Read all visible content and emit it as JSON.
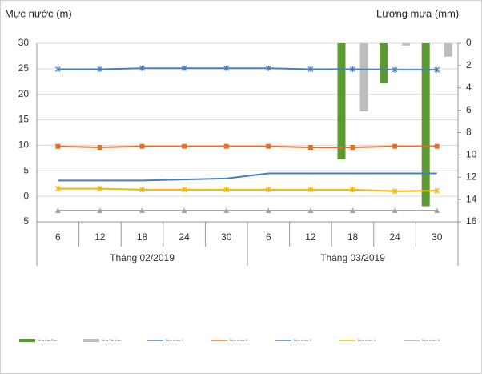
{
  "chart_data": {
    "type": "combo",
    "y_label": "Mực nước (m)",
    "y2_label": "Lượng mưa (mm)",
    "categories": [
      "6",
      "12",
      "18",
      "24",
      "30",
      "6",
      "12",
      "18",
      "24",
      "30"
    ],
    "category_groups": [
      "Tháng 02/2019",
      "Tháng 03/2019"
    ],
    "ylim": [
      -5,
      30
    ],
    "yticks": [
      {
        "value": -5,
        "label": "5"
      },
      0,
      5,
      10,
      15,
      20,
      25,
      30
    ],
    "y2lim": [
      0,
      16
    ],
    "y2ticks": [
      0,
      2,
      4,
      6,
      8,
      10,
      12,
      14,
      16
    ],
    "y2_inverted": true,
    "grid": true,
    "series": [
      {
        "name": "Mưa Lạc Sơn",
        "kind": "bar",
        "axis": "y2",
        "color": "#5b9a32",
        "values": [
          null,
          null,
          null,
          null,
          null,
          null,
          null,
          10.4,
          3.6,
          14.6
        ]
      },
      {
        "name": "Mưa Tân Lạc",
        "kind": "bar",
        "axis": "y2",
        "color": "#bdbdbd",
        "values": [
          null,
          null,
          null,
          null,
          null,
          null,
          null,
          6.1,
          0.2,
          1.2
        ]
      },
      {
        "name": "Mực nước 1",
        "kind": "line",
        "marker": "x",
        "color": "#4a7ebb",
        "values": [
          24.9,
          24.9,
          25.1,
          25.1,
          25.1,
          25.1,
          24.9,
          24.9,
          24.8,
          24.8
        ]
      },
      {
        "name": "Mực nước 2",
        "kind": "line",
        "marker": "square",
        "color": "#e0702a",
        "values": [
          9.8,
          9.6,
          9.8,
          9.8,
          9.8,
          9.8,
          9.6,
          9.6,
          9.8,
          9.8
        ]
      },
      {
        "name": "Mực nước 3",
        "kind": "line",
        "marker": "none",
        "color": "#4a7ebb",
        "values": [
          3.1,
          3.1,
          3.1,
          3.3,
          3.5,
          4.5,
          4.5,
          4.5,
          4.5,
          4.5
        ]
      },
      {
        "name": "Mực nước 4",
        "kind": "line",
        "marker": "x",
        "color": "#f2b705",
        "values": [
          1.5,
          1.5,
          1.3,
          1.3,
          1.3,
          1.3,
          1.3,
          1.3,
          1.0,
          1.1
        ]
      },
      {
        "name": "Mực nước 5",
        "kind": "line",
        "marker": "triangle",
        "color": "#a5a5a5",
        "values": [
          -2.8,
          -2.8,
          -2.8,
          -2.8,
          -2.8,
          -2.8,
          -2.8,
          -2.8,
          -2.8,
          -2.8
        ]
      }
    ]
  }
}
